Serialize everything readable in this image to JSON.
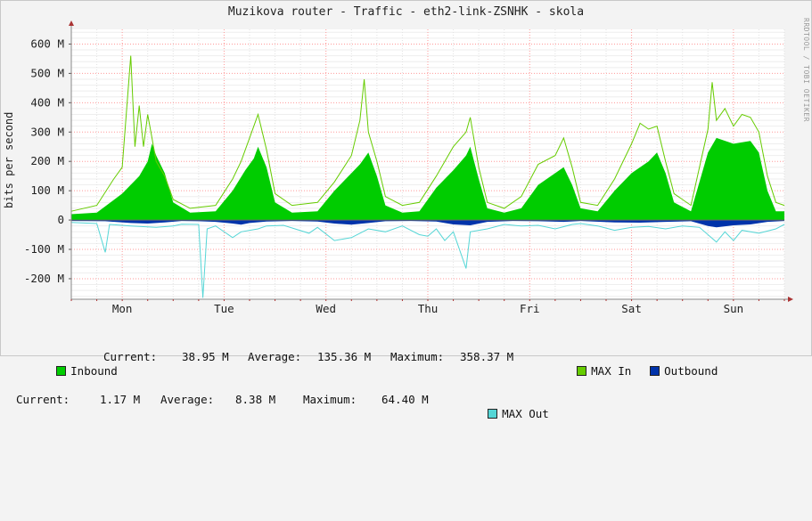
{
  "title": "Muzikova router - Traffic - eth2-link-ZSNHK - skola",
  "watermark": "RRDTOOL / TOBI OETIKER",
  "legend": {
    "inbound": {
      "name": "Inbound",
      "current_label": "Current:",
      "current": "38.95 M",
      "average_label": "Average:",
      "average": "135.36 M",
      "maximum_label": "Maximum:",
      "maximum": "358.37 M"
    },
    "max_in": "MAX In",
    "outbound": {
      "name": "Outbound",
      "current_label": "Current:",
      "current": "1.17 M",
      "average_label": "Average:",
      "average": "8.38 M",
      "maximum_label": "Maximum:",
      "maximum": "64.40 M"
    },
    "max_out": "MAX Out"
  },
  "colors": {
    "inbound": "#00cc00",
    "max_in": "#66cc00",
    "outbound": "#0033aa",
    "max_out": "#55d6d6",
    "background": "#f3f3f3",
    "plot": "#ffffff",
    "grid": "#ff9999",
    "axis": "#888888"
  },
  "chart_data": {
    "type": "area",
    "title": "Muzikova router - Traffic - eth2-link-ZSNHK - skola",
    "ylabel": "bits per second",
    "ylim": [
      -270,
      650
    ],
    "yticks": [
      -200,
      -100,
      0,
      100,
      200,
      300,
      400,
      500,
      600
    ],
    "ytick_labels": [
      "-200 M",
      "-100 M",
      "0",
      "100 M",
      "200 M",
      "300 M",
      "400 M",
      "500 M",
      "600 M"
    ],
    "x_categories": [
      "Mon",
      "Tue",
      "Wed",
      "Thu",
      "Fri",
      "Sat",
      "Sun"
    ],
    "x_unit": "hours since start of week window (7 days)",
    "grid": true,
    "series": [
      {
        "name": "Inbound",
        "values_M": [
          [
            0,
            20
          ],
          [
            6,
            25
          ],
          [
            12,
            90
          ],
          [
            16,
            150
          ],
          [
            18,
            200
          ],
          [
            19,
            260
          ],
          [
            20,
            220
          ],
          [
            22,
            160
          ],
          [
            24,
            60
          ],
          [
            28,
            25
          ],
          [
            34,
            30
          ],
          [
            38,
            100
          ],
          [
            41,
            170
          ],
          [
            43,
            210
          ],
          [
            44,
            250
          ],
          [
            46,
            180
          ],
          [
            48,
            60
          ],
          [
            52,
            25
          ],
          [
            58,
            30
          ],
          [
            62,
            100
          ],
          [
            66,
            160
          ],
          [
            68,
            190
          ],
          [
            70,
            230
          ],
          [
            72,
            150
          ],
          [
            74,
            50
          ],
          [
            78,
            25
          ],
          [
            82,
            30
          ],
          [
            86,
            110
          ],
          [
            90,
            170
          ],
          [
            93,
            220
          ],
          [
            94,
            250
          ],
          [
            96,
            140
          ],
          [
            98,
            40
          ],
          [
            102,
            25
          ],
          [
            106,
            40
          ],
          [
            110,
            120
          ],
          [
            114,
            160
          ],
          [
            116,
            180
          ],
          [
            118,
            120
          ],
          [
            120,
            40
          ],
          [
            124,
            30
          ],
          [
            128,
            100
          ],
          [
            132,
            160
          ],
          [
            136,
            200
          ],
          [
            138,
            230
          ],
          [
            140,
            160
          ],
          [
            142,
            60
          ],
          [
            146,
            30
          ],
          [
            150,
            230
          ],
          [
            152,
            280
          ],
          [
            156,
            260
          ],
          [
            160,
            270
          ],
          [
            162,
            230
          ],
          [
            164,
            100
          ],
          [
            166,
            30
          ],
          [
            168,
            30
          ]
        ]
      },
      {
        "name": "MAX In",
        "values_M": [
          [
            0,
            30
          ],
          [
            6,
            50
          ],
          [
            10,
            140
          ],
          [
            12,
            180
          ],
          [
            14,
            560
          ],
          [
            15,
            250
          ],
          [
            16,
            390
          ],
          [
            17,
            250
          ],
          [
            18,
            360
          ],
          [
            19,
            280
          ],
          [
            20,
            200
          ],
          [
            22,
            150
          ],
          [
            24,
            70
          ],
          [
            28,
            40
          ],
          [
            34,
            50
          ],
          [
            38,
            140
          ],
          [
            40,
            200
          ],
          [
            42,
            280
          ],
          [
            44,
            360
          ],
          [
            46,
            240
          ],
          [
            48,
            90
          ],
          [
            52,
            50
          ],
          [
            58,
            60
          ],
          [
            62,
            130
          ],
          [
            66,
            220
          ],
          [
            68,
            340
          ],
          [
            69,
            480
          ],
          [
            70,
            300
          ],
          [
            72,
            200
          ],
          [
            74,
            80
          ],
          [
            78,
            50
          ],
          [
            82,
            60
          ],
          [
            86,
            150
          ],
          [
            90,
            250
          ],
          [
            93,
            300
          ],
          [
            94,
            350
          ],
          [
            96,
            180
          ],
          [
            98,
            60
          ],
          [
            102,
            40
          ],
          [
            106,
            80
          ],
          [
            110,
            190
          ],
          [
            114,
            220
          ],
          [
            116,
            280
          ],
          [
            118,
            180
          ],
          [
            120,
            60
          ],
          [
            124,
            50
          ],
          [
            128,
            140
          ],
          [
            132,
            260
          ],
          [
            134,
            330
          ],
          [
            136,
            310
          ],
          [
            138,
            320
          ],
          [
            140,
            200
          ],
          [
            142,
            90
          ],
          [
            146,
            50
          ],
          [
            150,
            310
          ],
          [
            151,
            470
          ],
          [
            152,
            340
          ],
          [
            154,
            380
          ],
          [
            156,
            320
          ],
          [
            158,
            360
          ],
          [
            160,
            350
          ],
          [
            162,
            300
          ],
          [
            164,
            150
          ],
          [
            166,
            60
          ],
          [
            168,
            50
          ]
        ]
      },
      {
        "name": "Outbound",
        "values_M": [
          [
            0,
            -3
          ],
          [
            8,
            -4
          ],
          [
            14,
            -10
          ],
          [
            18,
            -12
          ],
          [
            22,
            -8
          ],
          [
            26,
            -3
          ],
          [
            30,
            -4
          ],
          [
            34,
            -6
          ],
          [
            38,
            -12
          ],
          [
            40,
            -16
          ],
          [
            42,
            -10
          ],
          [
            46,
            -5
          ],
          [
            52,
            -3
          ],
          [
            58,
            -5
          ],
          [
            62,
            -12
          ],
          [
            66,
            -16
          ],
          [
            70,
            -10
          ],
          [
            74,
            -4
          ],
          [
            80,
            -3
          ],
          [
            86,
            -5
          ],
          [
            90,
            -15
          ],
          [
            94,
            -18
          ],
          [
            98,
            -6
          ],
          [
            104,
            -3
          ],
          [
            110,
            -4
          ],
          [
            116,
            -6
          ],
          [
            120,
            -3
          ],
          [
            128,
            -8
          ],
          [
            134,
            -9
          ],
          [
            140,
            -6
          ],
          [
            146,
            -4
          ],
          [
            150,
            -20
          ],
          [
            152,
            -25
          ],
          [
            156,
            -18
          ],
          [
            160,
            -15
          ],
          [
            164,
            -6
          ],
          [
            168,
            -3
          ]
        ]
      },
      {
        "name": "MAX Out",
        "values_M": [
          [
            0,
            -8
          ],
          [
            6,
            -12
          ],
          [
            8,
            -110
          ],
          [
            9,
            -15
          ],
          [
            14,
            -20
          ],
          [
            20,
            -25
          ],
          [
            24,
            -20
          ],
          [
            26,
            -14
          ],
          [
            30,
            -15
          ],
          [
            31,
            -265
          ],
          [
            32,
            -30
          ],
          [
            34,
            -20
          ],
          [
            38,
            -60
          ],
          [
            40,
            -40
          ],
          [
            44,
            -30
          ],
          [
            46,
            -20
          ],
          [
            50,
            -18
          ],
          [
            56,
            -45
          ],
          [
            58,
            -25
          ],
          [
            62,
            -70
          ],
          [
            66,
            -60
          ],
          [
            70,
            -30
          ],
          [
            74,
            -40
          ],
          [
            78,
            -20
          ],
          [
            82,
            -50
          ],
          [
            84,
            -55
          ],
          [
            86,
            -30
          ],
          [
            88,
            -70
          ],
          [
            90,
            -40
          ],
          [
            93,
            -165
          ],
          [
            94,
            -40
          ],
          [
            98,
            -30
          ],
          [
            102,
            -15
          ],
          [
            106,
            -20
          ],
          [
            110,
            -18
          ],
          [
            114,
            -30
          ],
          [
            118,
            -15
          ],
          [
            120,
            -12
          ],
          [
            124,
            -20
          ],
          [
            128,
            -35
          ],
          [
            132,
            -25
          ],
          [
            136,
            -22
          ],
          [
            140,
            -30
          ],
          [
            144,
            -20
          ],
          [
            148,
            -25
          ],
          [
            152,
            -75
          ],
          [
            154,
            -40
          ],
          [
            156,
            -70
          ],
          [
            158,
            -35
          ],
          [
            162,
            -45
          ],
          [
            166,
            -30
          ],
          [
            168,
            -15
          ]
        ]
      }
    ]
  }
}
